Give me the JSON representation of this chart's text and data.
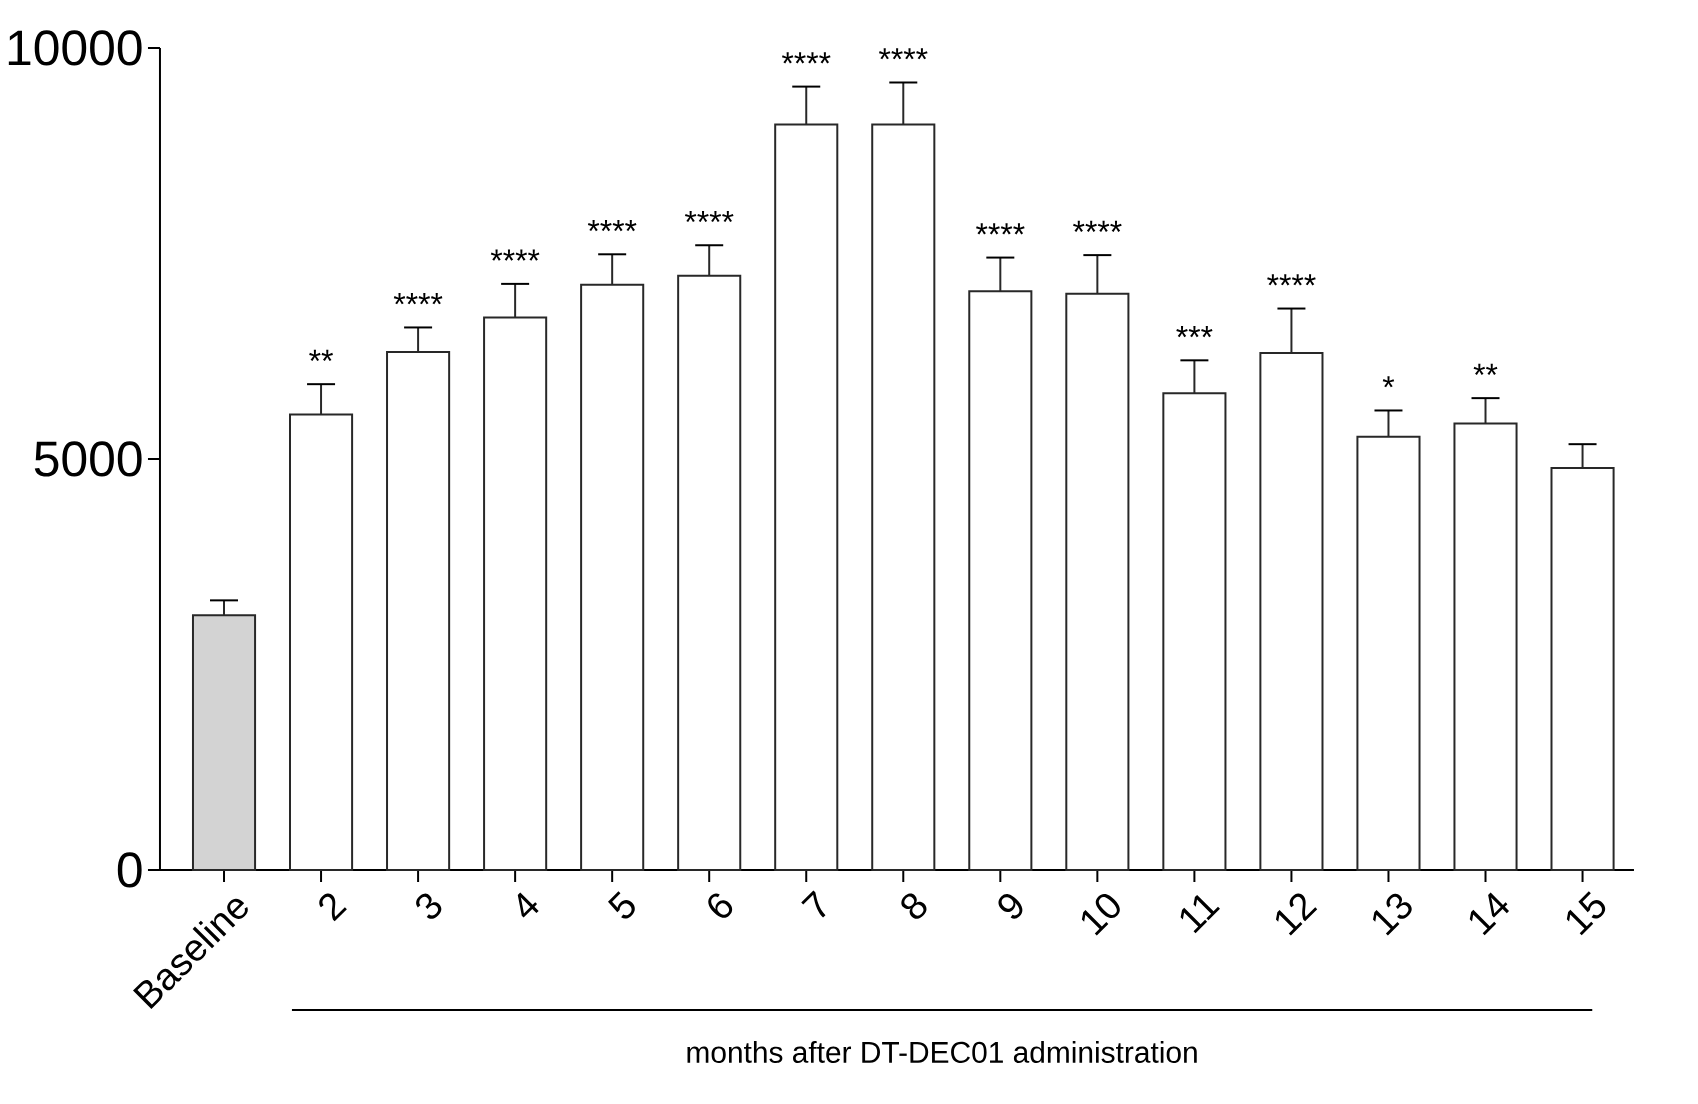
{
  "chart_data": {
    "type": "bar",
    "xlabel": "months after DT-DEC01 administration",
    "categories": [
      "Baseline",
      "2",
      "3",
      "4",
      "5",
      "6",
      "7",
      "8",
      "9",
      "10",
      "11",
      "12",
      "13",
      "14",
      "15"
    ],
    "values": [
      3100,
      5540,
      6300,
      6720,
      7120,
      7230,
      9070,
      9070,
      7040,
      7010,
      5800,
      6290,
      5270,
      5430,
      4890
    ],
    "errors": [
      180,
      370,
      300,
      410,
      370,
      370,
      460,
      510,
      410,
      470,
      400,
      540,
      320,
      310,
      290
    ],
    "colors": [
      "#d3d3d3",
      "#ffffff",
      "#ffffff",
      "#ffffff",
      "#ffffff",
      "#ffffff",
      "#ffffff",
      "#ffffff",
      "#ffffff",
      "#ffffff",
      "#ffffff",
      "#ffffff",
      "#ffffff",
      "#ffffff",
      "#ffffff"
    ],
    "ylim": [
      0,
      10000
    ],
    "yticks": [
      0,
      5000,
      10000
    ],
    "grid": false,
    "annotations": [
      {
        "text": "**",
        "x": "2",
        "y": 5910
      },
      {
        "text": "****",
        "x": "3",
        "y": 6600
      },
      {
        "text": "****",
        "x": "4",
        "y": 7130
      },
      {
        "text": "****",
        "x": "5",
        "y": 7490
      },
      {
        "text": "****",
        "x": "6",
        "y": 7600
      },
      {
        "text": "****",
        "x": "7",
        "y": 9530
      },
      {
        "text": "****",
        "x": "8",
        "y": 9580
      },
      {
        "text": "****",
        "x": "9",
        "y": 7450
      },
      {
        "text": "****",
        "x": "10",
        "y": 7480
      },
      {
        "text": "***",
        "x": "11",
        "y": 6200
      },
      {
        "text": "****",
        "x": "12",
        "y": 6830
      },
      {
        "text": "*",
        "x": "13",
        "y": 5590
      },
      {
        "text": "**",
        "x": "14",
        "y": 5740
      }
    ]
  }
}
